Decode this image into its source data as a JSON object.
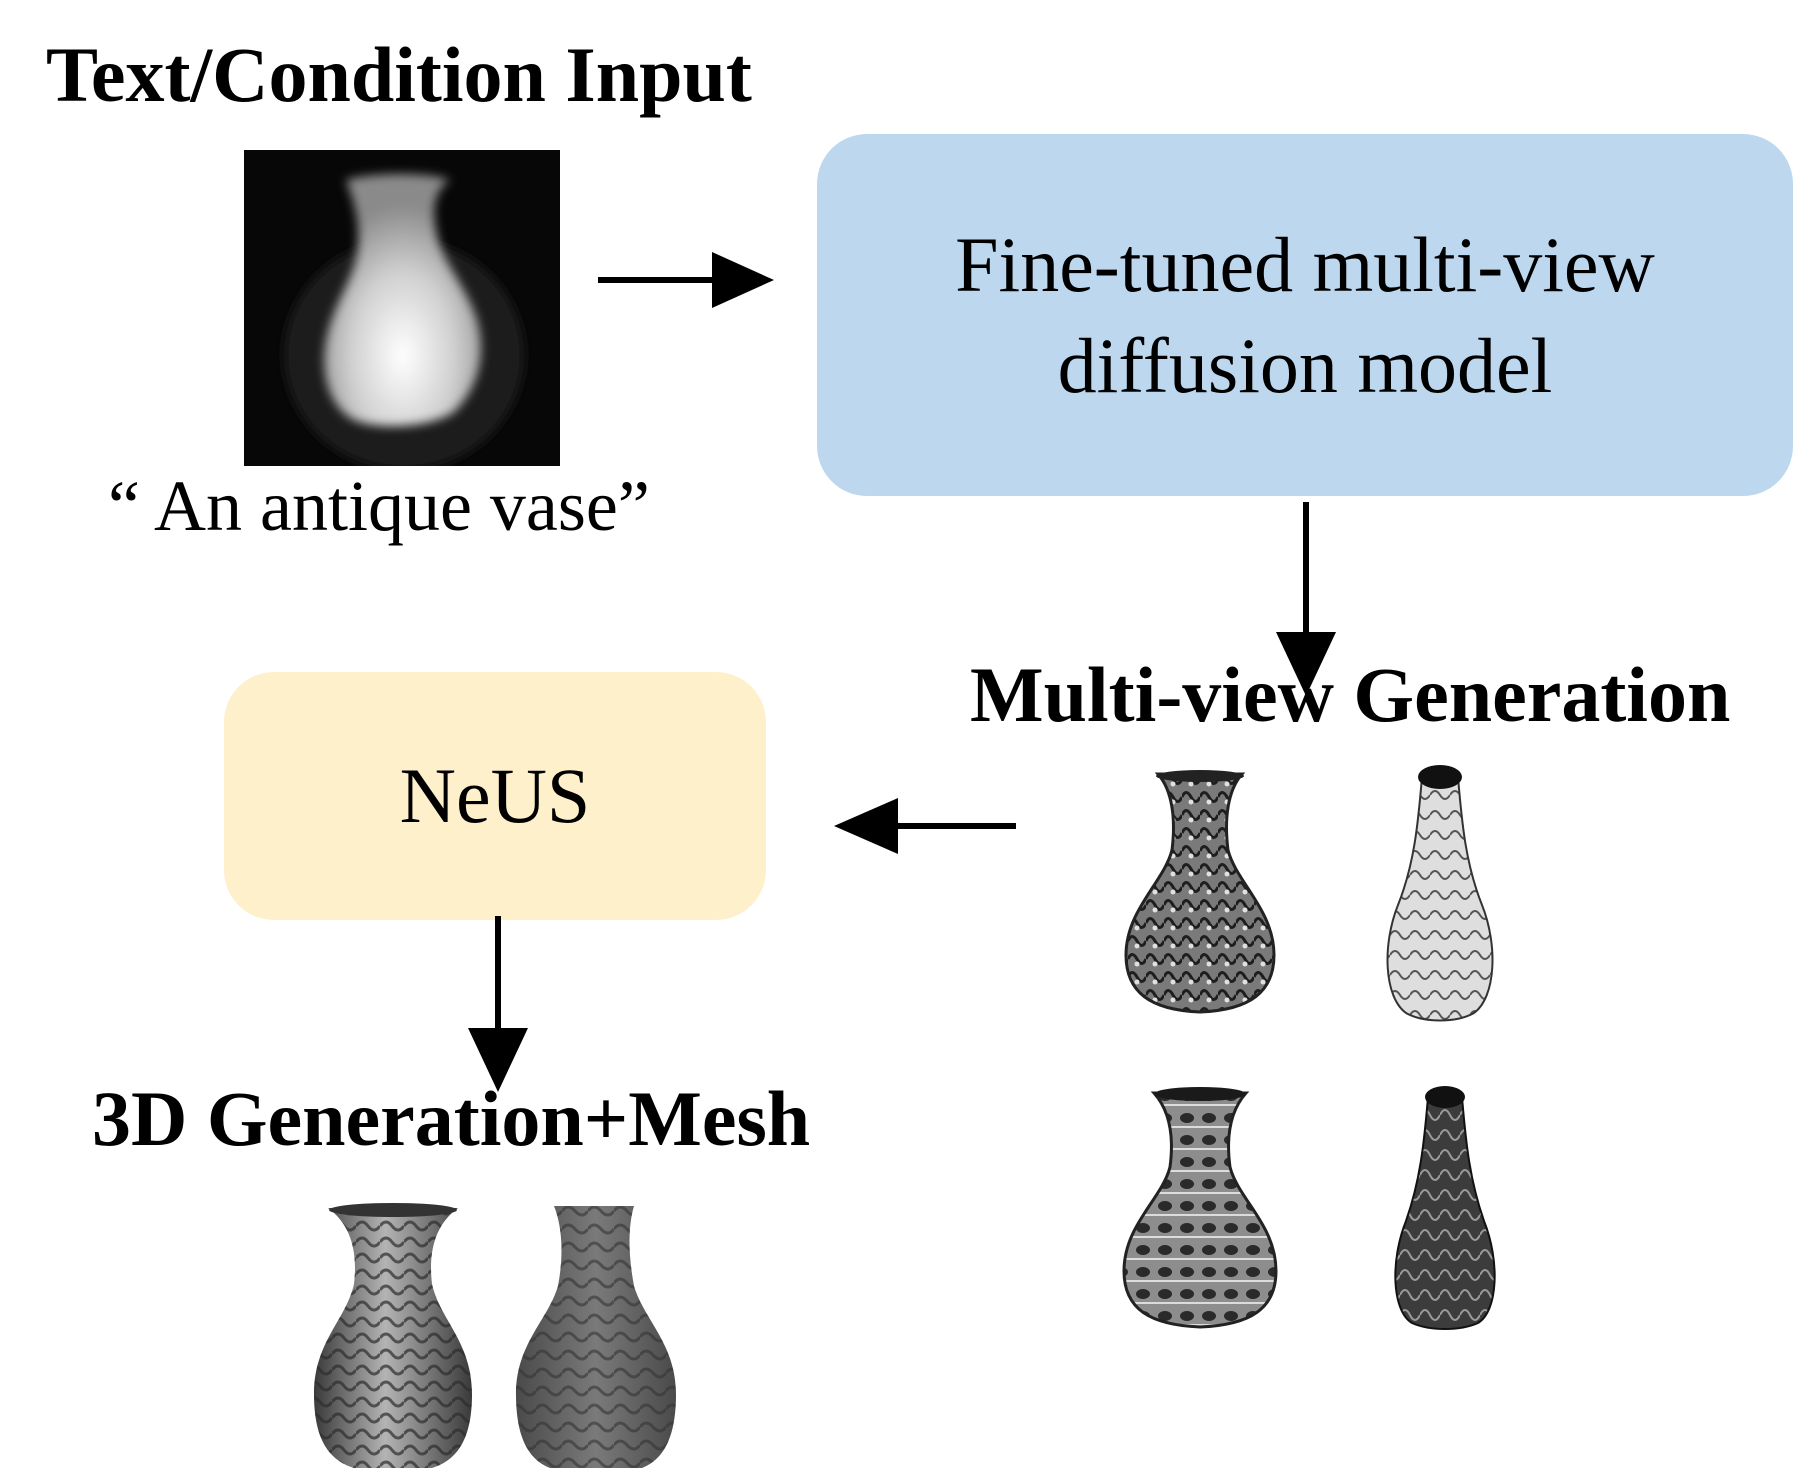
{
  "input": {
    "title": "Text/Condition Input",
    "caption": "“ An antique vase”"
  },
  "diffusion_box": {
    "line1": "Fine-tuned multi-view",
    "line2": "diffusion model",
    "color": "#bdd7ee"
  },
  "multiview": {
    "title": "Multi-view Generation"
  },
  "neus_box": {
    "label": "NeUS",
    "color": "#fff0cc"
  },
  "output": {
    "title": "3D Generation+Mesh"
  }
}
